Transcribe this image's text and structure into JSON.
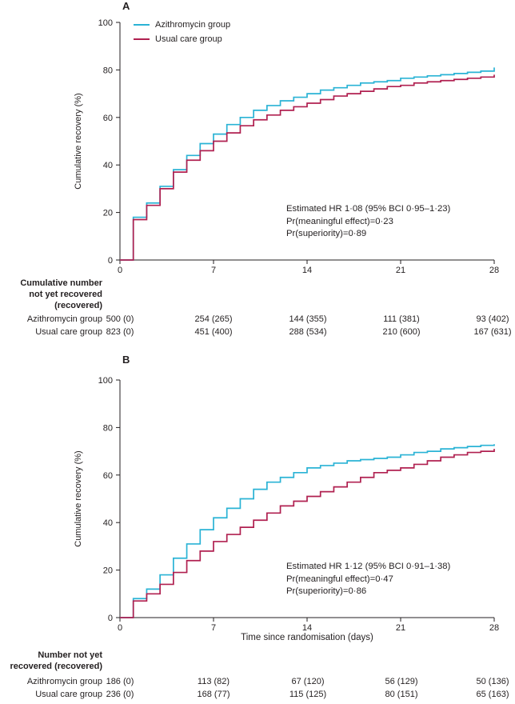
{
  "colors": {
    "azithromycin": "#2AB3D5",
    "usual_care": "#B02050",
    "axis": "#231f20",
    "text": "#231f20",
    "background": "#ffffff"
  },
  "chart_data": [
    {
      "type": "line",
      "subtype": "step",
      "title": "A",
      "xlabel": "",
      "ylabel": "Cumulative recovery (%)",
      "xlim": [
        0,
        28
      ],
      "ylim": [
        0,
        100
      ],
      "x_ticks": [
        0,
        7,
        14,
        21,
        28
      ],
      "y_ticks": [
        0,
        20,
        40,
        60,
        80,
        100
      ],
      "x_unit": "days since randomisation",
      "grid": false,
      "legend_position": "top-left-inside",
      "series": [
        {
          "name": "Azithromycin group",
          "color": "#2AB3D5",
          "values": [
            0,
            18,
            24,
            31,
            38,
            44,
            49,
            53,
            57,
            60,
            63,
            65,
            67,
            68.5,
            70,
            71.5,
            72.5,
            73.5,
            74.5,
            75,
            75.5,
            76.5,
            77,
            77.5,
            78,
            78.5,
            79,
            79.5,
            81
          ]
        },
        {
          "name": "Usual care group",
          "color": "#B02050",
          "values": [
            0,
            17,
            23,
            30,
            37,
            42,
            46,
            50,
            53.5,
            56.5,
            59,
            61,
            63,
            64.5,
            66,
            67.5,
            69,
            70,
            71,
            72,
            73,
            73.5,
            74.5,
            75,
            75.5,
            76,
            76.5,
            77,
            78
          ]
        }
      ],
      "annotations": [
        "Estimated HR 1·08 (95% BCI 0·95–1·23)",
        "Pr(meaningful effect)=0·23",
        "Pr(superiority)=0·89"
      ]
    },
    {
      "type": "line",
      "subtype": "step",
      "title": "B",
      "xlabel": "Time since randomisation (days)",
      "ylabel": "Cumulative recovery (%)",
      "xlim": [
        0,
        28
      ],
      "ylim": [
        0,
        100
      ],
      "x_ticks": [
        0,
        7,
        14,
        21,
        28
      ],
      "y_ticks": [
        0,
        20,
        40,
        60,
        80,
        100
      ],
      "x_unit": "days since randomisation",
      "grid": false,
      "legend_position": "none",
      "series": [
        {
          "name": "Azithromycin group",
          "color": "#2AB3D5",
          "values": [
            0,
            8,
            12,
            18,
            25,
            31,
            37,
            42,
            46,
            50,
            54,
            57,
            59,
            61,
            63,
            64,
            65,
            66,
            66.5,
            67,
            67.5,
            68.5,
            69.5,
            70,
            71,
            71.5,
            72,
            72.5,
            73
          ]
        },
        {
          "name": "Usual care group",
          "color": "#B02050",
          "values": [
            0,
            7,
            10,
            14,
            19,
            24,
            28,
            32,
            35,
            38,
            41,
            44,
            47,
            49,
            51,
            53,
            55,
            57,
            59,
            61,
            62,
            63,
            64.5,
            66,
            67.5,
            68.5,
            69.5,
            70,
            71
          ]
        }
      ],
      "annotations": [
        "Estimated HR 1·12 (95% BCI 0·91–1·38)",
        "Pr(meaningful effect)=0·47",
        "Pr(superiority)=0·86"
      ]
    }
  ],
  "risk_tables": [
    {
      "header_lines": [
        "Cumulative number",
        "not yet recovered",
        "(recovered)"
      ],
      "rows": [
        {
          "label": "Azithromycin group",
          "values": [
            "500 (0)",
            "254 (265)",
            "144 (355)",
            "111 (381)",
            "93 (402)"
          ]
        },
        {
          "label": "Usual care group",
          "values": [
            "823 (0)",
            "451 (400)",
            "288 (534)",
            "210 (600)",
            "167 (631)"
          ]
        }
      ]
    },
    {
      "header_lines": [
        "Number not yet",
        "recovered (recovered)"
      ],
      "rows": [
        {
          "label": "Azithromycin group",
          "values": [
            "186 (0)",
            "113 (82)",
            "67 (120)",
            "56 (129)",
            "50 (136)"
          ]
        },
        {
          "label": "Usual care group",
          "values": [
            "236 (0)",
            "168 (77)",
            "115 (125)",
            "80 (151)",
            "65 (163)"
          ]
        }
      ]
    }
  ]
}
